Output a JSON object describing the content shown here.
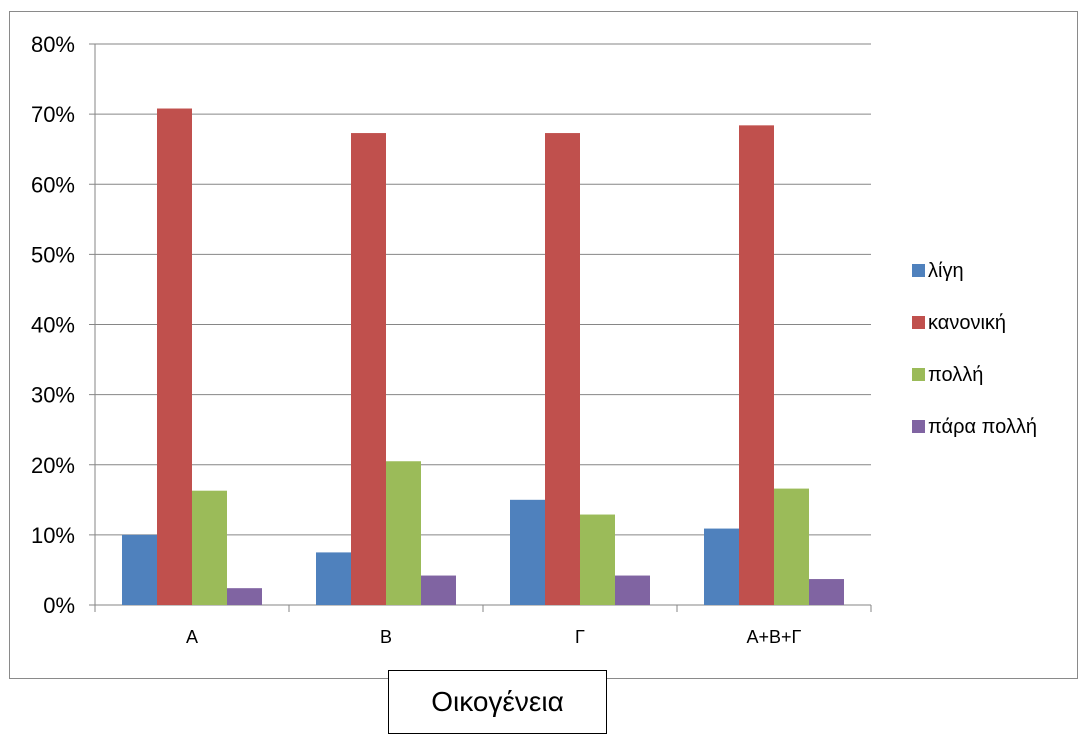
{
  "chart_data": {
    "type": "bar",
    "categories": [
      "A",
      "B",
      "Γ",
      "A+B+Γ"
    ],
    "series": [
      {
        "name": "λίγη",
        "color": "#4F81BD",
        "values": [
          10.0,
          7.5,
          15.0,
          10.9
        ]
      },
      {
        "name": "κανονική",
        "color": "#C0504D",
        "values": [
          70.8,
          67.3,
          67.3,
          68.4
        ]
      },
      {
        "name": "πολλή",
        "color": "#9BBB59",
        "values": [
          16.3,
          20.5,
          12.9,
          16.6
        ]
      },
      {
        "name": "πάρα πολλή",
        "color": "#8064A2",
        "values": [
          2.4,
          4.2,
          4.2,
          3.7
        ]
      }
    ],
    "ylim": [
      0,
      80
    ],
    "yticks": [
      0,
      10,
      20,
      30,
      40,
      50,
      60,
      70,
      80
    ],
    "ytick_labels": [
      "0%",
      "10%",
      "20%",
      "30%",
      "40%",
      "50%",
      "60%",
      "70%",
      "80%"
    ],
    "grid": true,
    "legend_position": "right",
    "xlabel": "Οικογένεια"
  }
}
